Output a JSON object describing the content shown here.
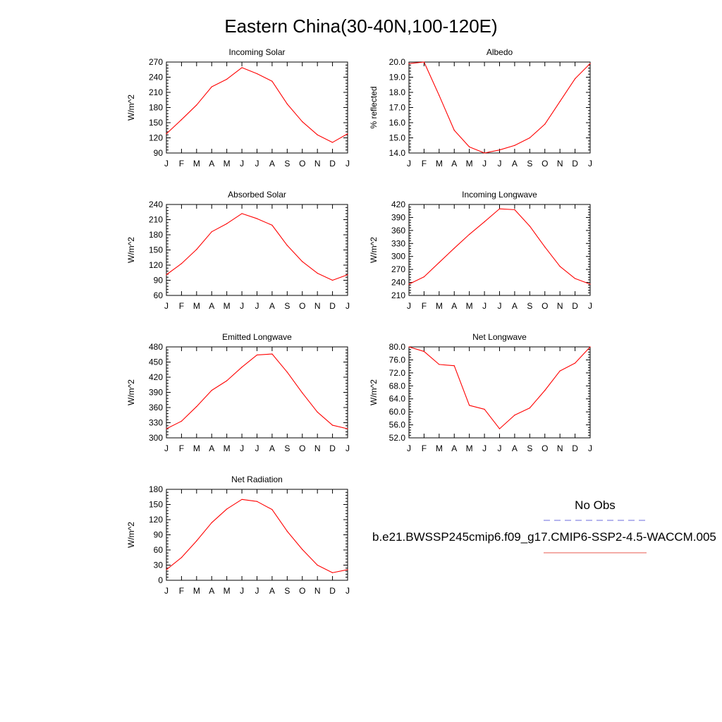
{
  "figure": {
    "title": "Eastern China(30-40N,100-120E)"
  },
  "months": [
    "J",
    "F",
    "M",
    "A",
    "M",
    "J",
    "J",
    "A",
    "S",
    "O",
    "N",
    "D",
    "J"
  ],
  "chart_data": [
    {
      "type": "line",
      "title": "Incoming Solar",
      "ylabel": "W/m^2",
      "ylim": [
        90,
        270
      ],
      "yticks": [
        "90",
        "120",
        "150",
        "180",
        "210",
        "240",
        "270"
      ],
      "series": [
        {
          "values": [
            128,
            156,
            185,
            221,
            236,
            259,
            247,
            232,
            187,
            152,
            126,
            111,
            128
          ]
        }
      ]
    },
    {
      "type": "line",
      "title": "Albedo",
      "ylabel": "% reflected",
      "ylim": [
        14.0,
        20.0
      ],
      "yticks": [
        "14.0",
        "15.0",
        "16.0",
        "17.0",
        "18.0",
        "19.0",
        "20.0"
      ],
      "series": [
        {
          "values": [
            19.9,
            20.0,
            17.8,
            15.5,
            14.4,
            14.0,
            14.2,
            14.5,
            15.0,
            15.9,
            17.4,
            18.9,
            19.9
          ]
        }
      ]
    },
    {
      "type": "line",
      "title": "Absorbed Solar",
      "ylabel": "W/m^2",
      "ylim": [
        60,
        240
      ],
      "yticks": [
        "60",
        "90",
        "120",
        "150",
        "180",
        "210",
        "240"
      ],
      "series": [
        {
          "values": [
            101,
            123,
            151,
            186,
            202,
            222,
            212,
            199,
            159,
            127,
            104,
            90,
            101
          ]
        }
      ]
    },
    {
      "type": "line",
      "title": "Incoming Longwave",
      "ylabel": "W/m^2",
      "ylim": [
        210,
        420
      ],
      "yticks": [
        "210",
        "240",
        "270",
        "300",
        "330",
        "360",
        "390",
        "420"
      ],
      "series": [
        {
          "values": [
            236,
            253,
            286,
            319,
            351,
            380,
            410,
            408,
            370,
            322,
            277,
            249,
            236
          ]
        }
      ]
    },
    {
      "type": "line",
      "title": "Emitted Longwave",
      "ylabel": "W/m^2",
      "ylim": [
        300,
        480
      ],
      "yticks": [
        "300",
        "330",
        "360",
        "390",
        "420",
        "450",
        "480"
      ],
      "series": [
        {
          "values": [
            318,
            333,
            362,
            394,
            413,
            440,
            464,
            466,
            430,
            389,
            351,
            325,
            318
          ]
        }
      ]
    },
    {
      "type": "line",
      "title": "Net Longwave",
      "ylabel": "W/m^2",
      "ylim": [
        52.0,
        80.0
      ],
      "yticks": [
        "52.0",
        "56.0",
        "60.0",
        "64.0",
        "68.0",
        "72.0",
        "76.0",
        "80.0"
      ],
      "series": [
        {
          "values": [
            80.0,
            78.6,
            74.6,
            74.2,
            62.0,
            60.8,
            54.8,
            59.0,
            61.2,
            66.6,
            72.6,
            75.0,
            80.0
          ]
        }
      ]
    },
    {
      "type": "line",
      "title": "Net Radiation",
      "ylabel": "W/m^2",
      "ylim": [
        0,
        180
      ],
      "yticks": [
        "0",
        "30",
        "60",
        "90",
        "120",
        "150",
        "180"
      ],
      "series": [
        {
          "values": [
            21,
            45,
            78,
            114,
            141,
            160,
            156,
            140,
            97,
            61,
            30,
            15,
            21
          ]
        }
      ]
    }
  ],
  "legend": {
    "obs_label": "No Obs",
    "obs_color": "#6b6bdc",
    "model_label": "b.e21.BWSSP245cmip6.f09_g17.CMIP6-SSP2-4.5-WACCM.005",
    "model_color": "#e8584f"
  },
  "colors": {
    "line": "#ff0000",
    "axis": "#000000"
  }
}
